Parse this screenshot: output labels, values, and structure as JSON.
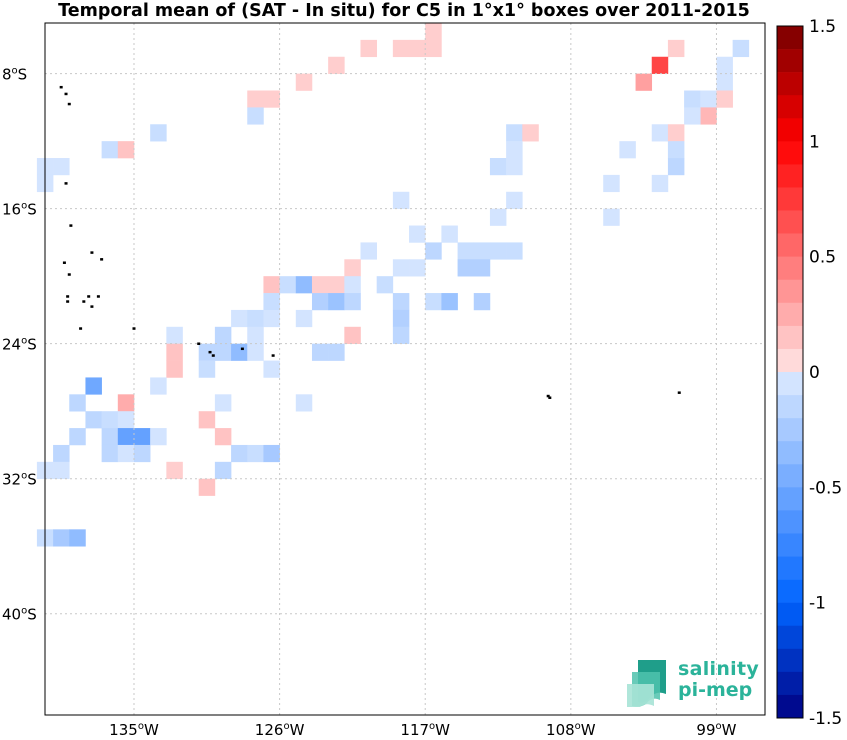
{
  "title": "Temporal mean of (SAT - In situ) for C5 in 1°x1° boxes over 2011-2015",
  "map": {
    "lon_min": -140.5,
    "lon_max": -96,
    "lat_min": -46,
    "lat_max": -5,
    "lon_ticks": [
      {
        "value": -135,
        "deg": "135",
        "hemi": "W"
      },
      {
        "value": -126,
        "deg": "126",
        "hemi": "W"
      },
      {
        "value": -117,
        "deg": "117",
        "hemi": "W"
      },
      {
        "value": -108,
        "deg": "108",
        "hemi": "W"
      },
      {
        "value": -99,
        "deg": "99",
        "hemi": "W"
      }
    ],
    "lat_ticks": [
      {
        "value": -8,
        "deg": "8",
        "hemi": "S"
      },
      {
        "value": -16,
        "deg": "16",
        "hemi": "S"
      },
      {
        "value": -24,
        "deg": "24",
        "hemi": "S"
      },
      {
        "value": -32,
        "deg": "32",
        "hemi": "S"
      },
      {
        "value": -40,
        "deg": "40",
        "hemi": "S"
      }
    ],
    "grid": true,
    "land_color": "#000000",
    "islands": [
      [
        -139.5,
        -8.8
      ],
      [
        -139.2,
        -9.2
      ],
      [
        -139.0,
        -9.8
      ],
      [
        -139.2,
        -14.5
      ],
      [
        -138.9,
        -17.0
      ],
      [
        -137.6,
        -18.6
      ],
      [
        -137.0,
        -19.0
      ],
      [
        -139.3,
        -19.2
      ],
      [
        -139.0,
        -19.9
      ],
      [
        -139.1,
        -21.2
      ],
      [
        -139.1,
        -21.5
      ],
      [
        -138.1,
        -21.5
      ],
      [
        -137.8,
        -21.2
      ],
      [
        -137.2,
        -21.2
      ],
      [
        -137.6,
        -21.8
      ],
      [
        -135.0,
        -23.1
      ],
      [
        -138.3,
        -23.1
      ],
      [
        -131.0,
        -24.0
      ],
      [
        -130.3,
        -24.5
      ],
      [
        -130.1,
        -24.7
      ],
      [
        -128.3,
        -24.3
      ],
      [
        -126.4,
        -24.7
      ],
      [
        -101.3,
        -26.9
      ],
      [
        -109.4,
        -27.1
      ],
      [
        -109.3,
        -27.2
      ]
    ],
    "boxes": [
      [
        -116.5,
        -5.5,
        0.1
      ],
      [
        -117.5,
        -6.5,
        0.1
      ],
      [
        -116.5,
        -6.5,
        0.1
      ],
      [
        -120.5,
        -6.5,
        0.1
      ],
      [
        -118.5,
        -6.5,
        0.1
      ],
      [
        -101.5,
        -6.5,
        0.1
      ],
      [
        -97.5,
        -6.5,
        -0.1
      ],
      [
        -122.5,
        -7.5,
        0.1
      ],
      [
        -102.5,
        -7.5,
        0.7
      ],
      [
        -98.5,
        -7.5,
        -0.05
      ],
      [
        -124.5,
        -8.5,
        0.1
      ],
      [
        -103.5,
        -8.5,
        0.3
      ],
      [
        -98.5,
        -8.5,
        -0.05
      ],
      [
        -127.5,
        -9.5,
        0.1
      ],
      [
        -126.5,
        -9.5,
        0.1
      ],
      [
        -100.5,
        -9.5,
        -0.1
      ],
      [
        -99.5,
        -9.5,
        -0.05
      ],
      [
        -98.5,
        -9.5,
        0.1
      ],
      [
        -127.5,
        -10.5,
        -0.1
      ],
      [
        -99.5,
        -10.5,
        0.2
      ],
      [
        -100.5,
        -10.5,
        -0.05
      ],
      [
        -133.5,
        -11.5,
        -0.1
      ],
      [
        -111.5,
        -11.5,
        -0.1
      ],
      [
        -110.5,
        -11.5,
        0.1
      ],
      [
        -102.5,
        -11.5,
        -0.05
      ],
      [
        -101.5,
        -11.5,
        0.1
      ],
      [
        -136.5,
        -12.5,
        -0.1
      ],
      [
        -135.5,
        -12.5,
        0.15
      ],
      [
        -111.5,
        -12.5,
        -0.05
      ],
      [
        -104.5,
        -12.5,
        -0.05
      ],
      [
        -101.5,
        -12.5,
        -0.1
      ],
      [
        -140.5,
        -13.5,
        -0.05
      ],
      [
        -139.5,
        -13.5,
        -0.05
      ],
      [
        -112.5,
        -13.5,
        -0.1
      ],
      [
        -111.5,
        -13.5,
        -0.05
      ],
      [
        -101.5,
        -13.5,
        -0.15
      ],
      [
        -140.5,
        -14.5,
        -0.05
      ],
      [
        -105.5,
        -14.5,
        -0.05
      ],
      [
        -102.5,
        -14.5,
        -0.05
      ],
      [
        -118.5,
        -15.5,
        -0.05
      ],
      [
        -111.5,
        -15.5,
        -0.05
      ],
      [
        -112.5,
        -16.5,
        -0.05
      ],
      [
        -105.5,
        -16.5,
        -0.05
      ],
      [
        -117.5,
        -17.5,
        -0.05
      ],
      [
        -115.5,
        -17.5,
        -0.05
      ],
      [
        -120.5,
        -18.5,
        -0.05
      ],
      [
        -116.5,
        -18.5,
        -0.15
      ],
      [
        -114.5,
        -18.5,
        -0.1
      ],
      [
        -113.5,
        -18.5,
        -0.1
      ],
      [
        -112.5,
        -18.5,
        -0.1
      ],
      [
        -111.5,
        -18.5,
        -0.1
      ],
      [
        -121.5,
        -19.5,
        0.1
      ],
      [
        -118.5,
        -19.5,
        -0.05
      ],
      [
        -117.5,
        -19.5,
        -0.05
      ],
      [
        -114.5,
        -19.5,
        -0.2
      ],
      [
        -113.5,
        -19.5,
        -0.2
      ],
      [
        -126.5,
        -20.5,
        0.15
      ],
      [
        -125.5,
        -20.5,
        -0.1
      ],
      [
        -124.5,
        -20.5,
        -0.35
      ],
      [
        -123.5,
        -20.5,
        0.1
      ],
      [
        -122.5,
        -20.5,
        0.1
      ],
      [
        -121.5,
        -20.5,
        -0.05
      ],
      [
        -119.5,
        -20.5,
        -0.1
      ],
      [
        -126.5,
        -21.5,
        -0.1
      ],
      [
        -123.5,
        -21.5,
        -0.2
      ],
      [
        -122.5,
        -21.5,
        -0.3
      ],
      [
        -121.5,
        -21.5,
        -0.15
      ],
      [
        -118.5,
        -21.5,
        -0.15
      ],
      [
        -116.5,
        -21.5,
        -0.1
      ],
      [
        -115.5,
        -21.5,
        -0.3
      ],
      [
        -113.5,
        -21.5,
        -0.2
      ],
      [
        -128.5,
        -22.5,
        -0.05
      ],
      [
        -127.5,
        -22.5,
        -0.1
      ],
      [
        -126.5,
        -22.5,
        -0.05
      ],
      [
        -124.5,
        -22.5,
        -0.05
      ],
      [
        -118.5,
        -22.5,
        -0.2
      ],
      [
        -132.5,
        -23.5,
        -0.05
      ],
      [
        -129.5,
        -23.5,
        -0.15
      ],
      [
        -127.5,
        -23.5,
        -0.05
      ],
      [
        -121.5,
        -23.5,
        0.15
      ],
      [
        -118.5,
        -23.5,
        -0.15
      ],
      [
        -132.5,
        -24.5,
        0.15
      ],
      [
        -130.5,
        -24.5,
        -0.15
      ],
      [
        -129.5,
        -24.5,
        -0.15
      ],
      [
        -128.5,
        -24.5,
        -0.35
      ],
      [
        -127.5,
        -24.5,
        -0.05
      ],
      [
        -123.5,
        -24.5,
        -0.15
      ],
      [
        -122.5,
        -24.5,
        -0.15
      ],
      [
        -132.5,
        -25.5,
        0.15
      ],
      [
        -130.5,
        -25.5,
        -0.1
      ],
      [
        -126.5,
        -25.5,
        -0.05
      ],
      [
        -133.5,
        -26.5,
        -0.05
      ],
      [
        -137.5,
        -26.5,
        -0.5
      ],
      [
        -138.5,
        -27.5,
        -0.15
      ],
      [
        -135.5,
        -27.5,
        0.25
      ],
      [
        -129.5,
        -27.5,
        -0.05
      ],
      [
        -124.5,
        -27.5,
        -0.05
      ],
      [
        -137.5,
        -28.5,
        -0.15
      ],
      [
        -136.5,
        -28.5,
        -0.1
      ],
      [
        -135.5,
        -28.5,
        -0.05
      ],
      [
        -130.5,
        -28.5,
        0.15
      ],
      [
        -138.5,
        -29.5,
        -0.15
      ],
      [
        -136.5,
        -29.5,
        -0.15
      ],
      [
        -135.5,
        -29.5,
        -0.55
      ],
      [
        -134.5,
        -29.5,
        -0.55
      ],
      [
        -133.5,
        -29.5,
        -0.05
      ],
      [
        -129.5,
        -29.5,
        0.15
      ],
      [
        -139.5,
        -30.5,
        -0.15
      ],
      [
        -136.5,
        -30.5,
        -0.15
      ],
      [
        -135.5,
        -30.5,
        -0.05
      ],
      [
        -134.5,
        -30.5,
        -0.15
      ],
      [
        -128.5,
        -30.5,
        -0.15
      ],
      [
        -127.5,
        -30.5,
        -0.1
      ],
      [
        -126.5,
        -30.5,
        -0.25
      ],
      [
        -140.5,
        -31.5,
        -0.05
      ],
      [
        -139.5,
        -31.5,
        -0.05
      ],
      [
        -132.5,
        -31.5,
        0.1
      ],
      [
        -129.5,
        -31.5,
        -0.15
      ],
      [
        -130.5,
        -32.5,
        0.15
      ],
      [
        -140.5,
        -35.5,
        -0.1
      ],
      [
        -139.5,
        -35.5,
        -0.25
      ],
      [
        -138.5,
        -35.5,
        -0.35
      ]
    ]
  },
  "colorbar": {
    "min": -1.5,
    "max": 1.5,
    "step": 0.1,
    "labels": [
      "1.5",
      "1",
      "0.5",
      "0",
      "-0.5",
      "-1",
      "-1.5"
    ]
  },
  "logo": {
    "line1": "salinity",
    "line2": "pi-mep"
  }
}
